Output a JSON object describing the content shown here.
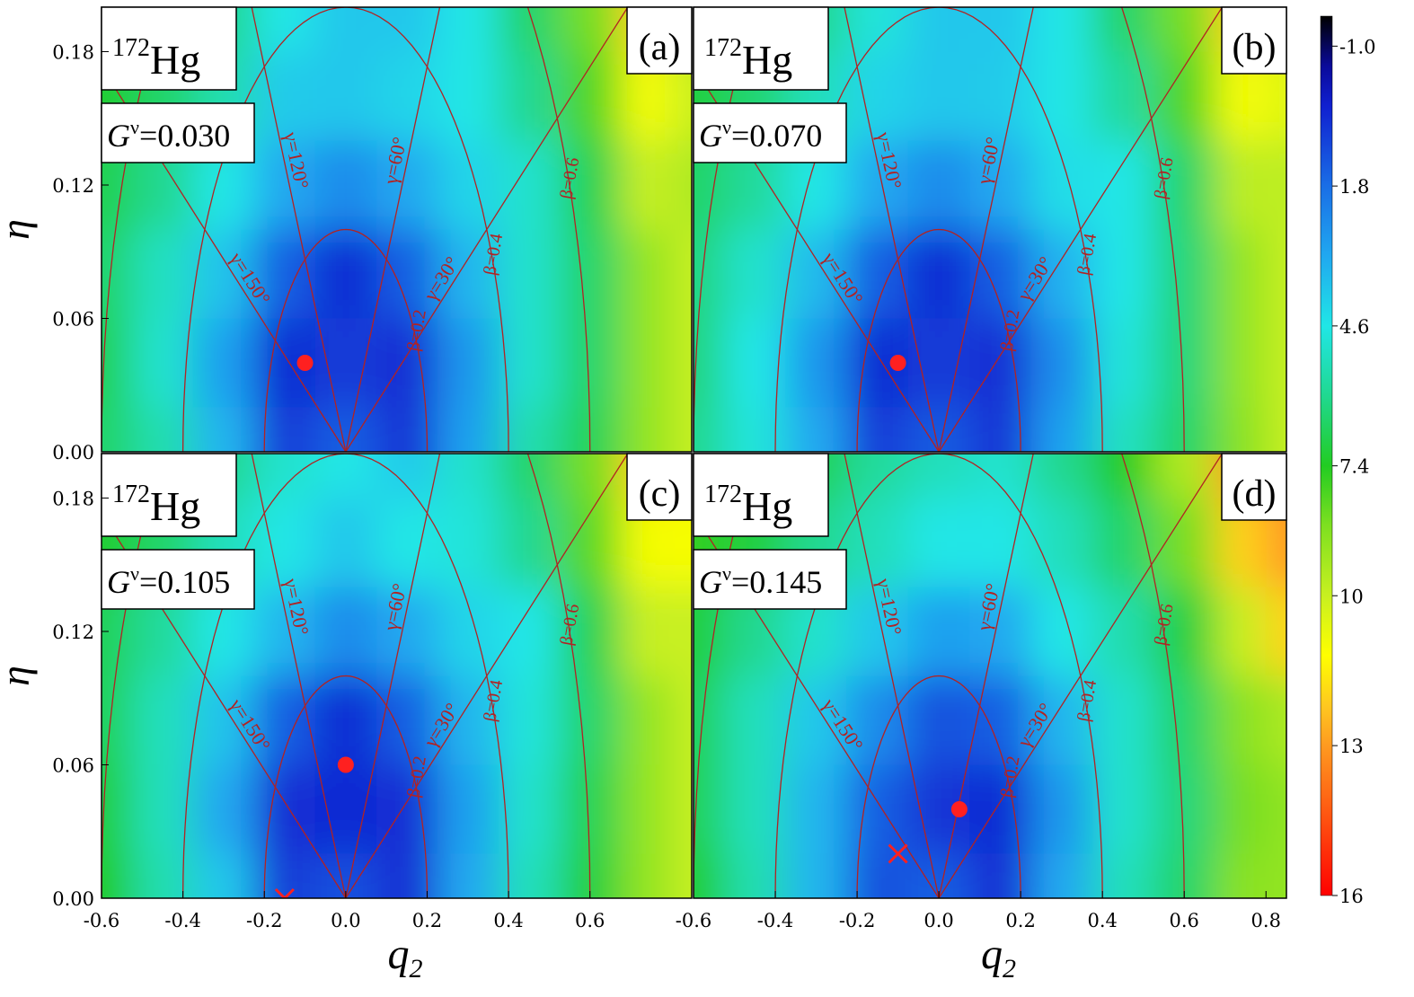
{
  "chart_data": [
    {
      "type": "contour",
      "panel_label": "(a)",
      "nucleus_mass": "172",
      "nucleus": "Hg",
      "param_symbol": "G",
      "param_sup": "ν",
      "param_value": "=0.030",
      "xlim": [
        -0.6,
        0.85
      ],
      "ylim": [
        0,
        0.2
      ],
      "yticks": [
        {
          "value": 0,
          "label": "0.00"
        },
        0.06,
        0.12,
        0.18
      ],
      "ylabel": "η",
      "x": [
        -0.6,
        -0.45,
        -0.3,
        -0.15,
        0,
        0.15,
        0.3,
        0.45,
        0.6,
        0.75,
        0.85
      ],
      "y": [
        0,
        0.04,
        0.08,
        0.12,
        0.16,
        0.2
      ],
      "z": [
        [
          6.5,
          5.5,
          3.5,
          0.8,
          1.5,
          0.6,
          3.0,
          5.5,
          6.7,
          9,
          10
        ],
        [
          6.7,
          5.0,
          3.0,
          0.4,
          0.8,
          0.5,
          2.8,
          5.0,
          6.5,
          9,
          10
        ],
        [
          6.5,
          5.2,
          3.8,
          1.5,
          0.4,
          1.5,
          3.5,
          5.0,
          6.5,
          9,
          10
        ],
        [
          6.8,
          6.0,
          4.6,
          3.2,
          2.5,
          3.2,
          4.2,
          5.0,
          6.8,
          10,
          9.5
        ],
        [
          7.2,
          6.5,
          5.5,
          4.0,
          3.9,
          4.2,
          4.6,
          6.0,
          8,
          11,
          10
        ],
        [
          7.4,
          7.0,
          6.0,
          4.6,
          3.9,
          3.9,
          4.6,
          6.5,
          8.5,
          12,
          9
        ]
      ],
      "minimum": [
        -0.1,
        0.04
      ]
    },
    {
      "type": "contour",
      "panel_label": "(b)",
      "nucleus_mass": "172",
      "nucleus": "Hg",
      "param_symbol": "G",
      "param_sup": "ν",
      "param_value": "=0.070",
      "xlim": [
        -0.6,
        0.85
      ],
      "ylim": [
        0,
        0.2
      ],
      "x": [
        -0.6,
        -0.45,
        -0.3,
        -0.15,
        0,
        0.15,
        0.3,
        0.45,
        0.6,
        0.75,
        0.85
      ],
      "y": [
        0,
        0.04,
        0.08,
        0.12,
        0.16,
        0.2
      ],
      "z": [
        [
          6.0,
          4.8,
          3.2,
          0.8,
          1.4,
          0.6,
          3.0,
          5.2,
          6.5,
          8.8,
          10
        ],
        [
          6.2,
          4.6,
          2.8,
          0.4,
          0.8,
          0.5,
          2.6,
          4.8,
          6.3,
          9,
          10
        ],
        [
          6.2,
          5.0,
          3.6,
          1.5,
          0.4,
          1.5,
          3.4,
          4.6,
          6.3,
          9,
          10
        ],
        [
          6.5,
          5.8,
          4.6,
          3.2,
          2.5,
          3.2,
          4.4,
          4.6,
          6.5,
          9.8,
          9.8
        ],
        [
          7.0,
          6.4,
          5.3,
          4.2,
          3.9,
          4.0,
          4.6,
          5.8,
          8,
          11,
          10.5
        ],
        [
          7.4,
          7.0,
          6.0,
          4.8,
          3.9,
          3.9,
          4.6,
          6.5,
          8.5,
          12,
          10
        ]
      ],
      "minimum": [
        -0.1,
        0.04
      ]
    },
    {
      "type": "contour",
      "panel_label": "(c)",
      "nucleus_mass": "172",
      "nucleus": "Hg",
      "param_symbol": "G",
      "param_sup": "ν",
      "param_value": "=0.105",
      "xlim": [
        -0.6,
        0.85
      ],
      "ylim": [
        0,
        0.2
      ],
      "yticks": [
        {
          "value": 0,
          "label": "0.00"
        },
        0.06,
        0.12,
        0.18
      ],
      "ylabel": "η",
      "xticks": [
        -0.6,
        -0.4,
        -0.2,
        {
          "value": 0,
          "label": "0.0"
        },
        0.2,
        0.4,
        0.6
      ],
      "xlabel": "q",
      "xlabel_sub": "2",
      "x": [
        -0.6,
        -0.45,
        -0.3,
        -0.15,
        0,
        0.15,
        0.3,
        0.45,
        0.6,
        0.75,
        0.85
      ],
      "y": [
        0,
        0.04,
        0.08,
        0.12,
        0.16,
        0.2
      ],
      "z": [
        [
          7.4,
          5.5,
          3.9,
          0.8,
          1.2,
          0.5,
          3.2,
          5.3,
          7.0,
          9,
          10
        ],
        [
          7.0,
          5.3,
          3.2,
          0.5,
          0.4,
          0.5,
          3.0,
          5.0,
          6.8,
          9,
          10
        ],
        [
          6.7,
          5.3,
          3.8,
          1.5,
          0.4,
          1.5,
          3.5,
          4.8,
          6.5,
          9,
          10
        ],
        [
          6.7,
          5.8,
          4.6,
          3.5,
          2.5,
          3.2,
          4.2,
          4.6,
          6.8,
          10,
          10
        ],
        [
          7.2,
          6.5,
          5.3,
          4.6,
          3.9,
          4.6,
          4.8,
          6.0,
          8.1,
          11,
          11
        ],
        [
          7.6,
          7.2,
          6.0,
          5.0,
          4.6,
          4.0,
          5.0,
          6.5,
          8.5,
          12,
          11
        ]
      ],
      "minimum": [
        0,
        0.06
      ],
      "saddle": [
        -0.15,
        0
      ]
    },
    {
      "type": "contour",
      "panel_label": "(d)",
      "nucleus_mass": "172",
      "nucleus": "Hg",
      "param_symbol": "G",
      "param_sup": "ν",
      "param_value": "=0.145",
      "xlim": [
        -0.6,
        0.85
      ],
      "ylim": [
        0,
        0.2
      ],
      "xticks": [
        -0.6,
        -0.4,
        -0.2,
        {
          "value": 0,
          "label": "0.0"
        },
        0.2,
        0.4,
        0.6,
        0.8
      ],
      "xlabel": "q",
      "xlabel_sub": "2",
      "x": [
        -0.6,
        -0.45,
        -0.3,
        -0.15,
        0,
        0.15,
        0.3,
        0.45,
        0.6,
        0.75,
        0.85
      ],
      "y": [
        0,
        0.04,
        0.08,
        0.12,
        0.16,
        0.2
      ],
      "z": [
        [
          7.2,
          5.5,
          3.5,
          1.2,
          1.5,
          0.5,
          3.2,
          5.3,
          6.5,
          8.8,
          9
        ],
        [
          6.7,
          5.3,
          3.5,
          1.5,
          0.6,
          0.4,
          2.8,
          5.0,
          6.3,
          8.5,
          9
        ],
        [
          6.7,
          5.3,
          3.9,
          2.5,
          1.2,
          1.5,
          3.5,
          5.0,
          6.5,
          8.8,
          9.5
        ],
        [
          7.0,
          6.0,
          5.0,
          3.9,
          3.0,
          3.2,
          4.6,
          5.5,
          7.0,
          10,
          12
        ],
        [
          7.6,
          7.0,
          6.0,
          5.3,
          4.6,
          4.6,
          5.3,
          6.5,
          8.5,
          12,
          13
        ],
        [
          8.5,
          8.1,
          6.7,
          5.8,
          5.3,
          5.0,
          6.0,
          7.4,
          9.5,
          13,
          14
        ]
      ],
      "minimum": [
        0.05,
        0.04
      ],
      "saddle": [
        -0.1,
        0.02
      ]
    }
  ],
  "mesh": {
    "beta_lines": [
      {
        "value": 0.2,
        "label": "β=0.2"
      },
      {
        "value": 0.4,
        "label": "β=0.4"
      },
      {
        "value": 0.6,
        "label": "β=0.6"
      }
    ],
    "gamma_lines": [
      {
        "value": 30,
        "label": "γ=30°"
      },
      {
        "value": 60,
        "label": "γ=60°"
      },
      {
        "value": 120,
        "label": "γ=120°"
      },
      {
        "value": 150,
        "label": "γ=150°"
      }
    ],
    "color": "#b22222"
  },
  "colorbar": {
    "lim": [
      -1.6,
      16
    ],
    "ticks": [
      {
        "value": -1,
        "label": "-1.0"
      },
      1.8,
      4.6,
      7.4,
      10,
      13,
      16
    ],
    "colormap": [
      [
        -1.6,
        "#000000"
      ],
      [
        -0.6,
        "#0a0a9a"
      ],
      [
        0.2,
        "#1020d0"
      ],
      [
        1.8,
        "#1a6ee6"
      ],
      [
        3.2,
        "#20a8f0"
      ],
      [
        4.6,
        "#20e6e6"
      ],
      [
        6,
        "#20d890"
      ],
      [
        7.4,
        "#22cc22"
      ],
      [
        8.6,
        "#7ee020"
      ],
      [
        10,
        "#c8f020"
      ],
      [
        11.2,
        "#ffff00"
      ],
      [
        12.2,
        "#ffc820"
      ],
      [
        13,
        "#ff9a20"
      ],
      [
        14.5,
        "#ff5010"
      ],
      [
        16,
        "#ff0000"
      ]
    ]
  }
}
